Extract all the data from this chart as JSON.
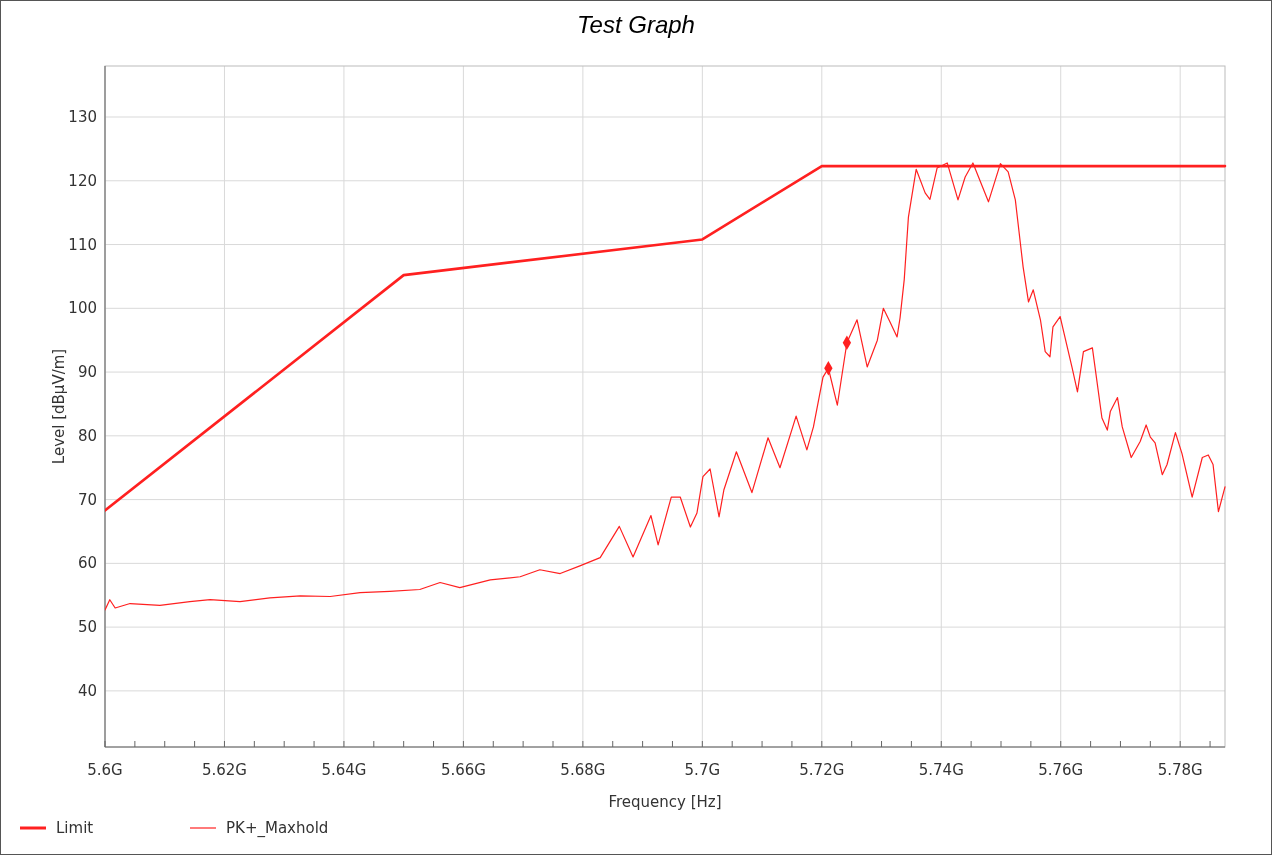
{
  "chart_data": {
    "type": "line",
    "title": "Test Graph",
    "xlabel": "Frequency [Hz]",
    "ylabel": "Level [dBµV/m]",
    "xlim": [
      5.6,
      5.7875
    ],
    "ylim": [
      31.2,
      138
    ],
    "xticks": [
      {
        "value": 5.6,
        "label": "5.6G"
      },
      {
        "value": 5.605,
        "label": null
      },
      {
        "value": 5.61,
        "label": null
      },
      {
        "value": 5.615,
        "label": null
      },
      {
        "value": 5.62,
        "label": "5.62G"
      },
      {
        "value": 5.625,
        "label": null
      },
      {
        "value": 5.63,
        "label": null
      },
      {
        "value": 5.635,
        "label": null
      },
      {
        "value": 5.64,
        "label": "5.64G"
      },
      {
        "value": 5.645,
        "label": null
      },
      {
        "value": 5.65,
        "label": null
      },
      {
        "value": 5.655,
        "label": null
      },
      {
        "value": 5.66,
        "label": "5.66G"
      },
      {
        "value": 5.665,
        "label": null
      },
      {
        "value": 5.67,
        "label": null
      },
      {
        "value": 5.675,
        "label": null
      },
      {
        "value": 5.68,
        "label": "5.68G"
      },
      {
        "value": 5.685,
        "label": null
      },
      {
        "value": 5.69,
        "label": null
      },
      {
        "value": 5.695,
        "label": null
      },
      {
        "value": 5.7,
        "label": "5.7G"
      },
      {
        "value": 5.705,
        "label": null
      },
      {
        "value": 5.71,
        "label": null
      },
      {
        "value": 5.715,
        "label": null
      },
      {
        "value": 5.72,
        "label": "5.72G"
      },
      {
        "value": 5.725,
        "label": null
      },
      {
        "value": 5.73,
        "label": null
      },
      {
        "value": 5.735,
        "label": null
      },
      {
        "value": 5.74,
        "label": "5.74G"
      },
      {
        "value": 5.745,
        "label": null
      },
      {
        "value": 5.75,
        "label": null
      },
      {
        "value": 5.755,
        "label": null
      },
      {
        "value": 5.76,
        "label": "5.76G"
      },
      {
        "value": 5.765,
        "label": null
      },
      {
        "value": 5.77,
        "label": null
      },
      {
        "value": 5.775,
        "label": null
      },
      {
        "value": 5.78,
        "label": "5.78G"
      },
      {
        "value": 5.785,
        "label": null
      }
    ],
    "yticks": [
      40,
      50,
      60,
      70,
      80,
      90,
      100,
      110,
      120,
      130
    ],
    "grid": true,
    "legend": "bottom left",
    "marker": "none",
    "line_style": "solid",
    "series": [
      {
        "name": "Limit",
        "color": "#ff2020",
        "x": [
          5.6,
          5.65,
          5.7,
          5.72,
          5.7875
        ],
        "values": [
          68.3,
          105.2,
          110.8,
          122.3,
          122.3
        ]
      },
      {
        "name": "PK+_Maxhold",
        "color": "#ff2020",
        "x": [
          5.6,
          5.6008,
          5.6017,
          5.6042,
          5.6092,
          5.6142,
          5.6176,
          5.6226,
          5.6276,
          5.6327,
          5.6377,
          5.6427,
          5.6477,
          5.6527,
          5.6561,
          5.6594,
          5.6645,
          5.6695,
          5.6728,
          5.6762,
          5.6795,
          5.6829,
          5.6861,
          5.6884,
          5.6914,
          5.6926,
          5.6948,
          5.6963,
          5.698,
          5.6991,
          5.7001,
          5.7013,
          5.7028,
          5.7036,
          5.7057,
          5.7083,
          5.711,
          5.713,
          5.7157,
          5.7175,
          5.7186,
          5.7202,
          5.7211,
          5.7226,
          5.7242,
          5.7259,
          5.7276,
          5.7293,
          5.7303,
          5.7314,
          5.7326,
          5.7331,
          5.7338,
          5.7345,
          5.7358,
          5.7373,
          5.7381,
          5.7393,
          5.741,
          5.7428,
          5.744,
          5.7453,
          5.7479,
          5.7499,
          5.7512,
          5.7524,
          5.7537,
          5.7546,
          5.7554,
          5.7566,
          5.7574,
          5.7582,
          5.7587,
          5.7599,
          5.7619,
          5.7628,
          5.7638,
          5.7653,
          5.7669,
          5.7678,
          5.7683,
          5.7695,
          5.7703,
          5.7718,
          5.7733,
          5.7743,
          5.775,
          5.7758,
          5.777,
          5.7778,
          5.7792,
          5.7803,
          5.782,
          5.7837,
          5.7847,
          5.7855,
          5.7864,
          5.7875
        ],
        "values": [
          52.7,
          54.3,
          53.0,
          53.7,
          53.4,
          54.0,
          54.3,
          54.0,
          54.6,
          54.9,
          54.8,
          55.4,
          55.6,
          55.9,
          57.0,
          56.2,
          57.4,
          57.9,
          59.0,
          58.4,
          59.6,
          60.9,
          65.8,
          61.0,
          67.5,
          62.9,
          70.4,
          70.4,
          65.7,
          67.9,
          73.6,
          74.8,
          67.3,
          71.5,
          77.5,
          71.1,
          79.7,
          75.0,
          83.1,
          77.8,
          81.4,
          89.2,
          90.6,
          84.8,
          94.6,
          98.2,
          90.8,
          95.0,
          100.0,
          97.9,
          95.5,
          98.5,
          104.5,
          114.3,
          121.8,
          118.1,
          117.1,
          122.0,
          122.8,
          117.0,
          120.6,
          122.8,
          116.7,
          122.7,
          121.4,
          117.0,
          106.5,
          101.0,
          102.9,
          98.2,
          93.2,
          92.4,
          97.1,
          98.7,
          90.7,
          86.9,
          93.2,
          93.8,
          82.8,
          80.9,
          83.8,
          86.0,
          81.4,
          76.6,
          79.1,
          81.7,
          79.8,
          78.9,
          73.9,
          75.5,
          80.5,
          77.2,
          70.4,
          76.6,
          77.0,
          75.5,
          68.1,
          72.0
        ]
      },
      {
        "type": "scatter",
        "marker": "diamond",
        "color": "#ff2020",
        "x": [
          5.7211,
          5.7242
        ],
        "values": [
          90.6,
          94.6
        ]
      }
    ]
  }
}
